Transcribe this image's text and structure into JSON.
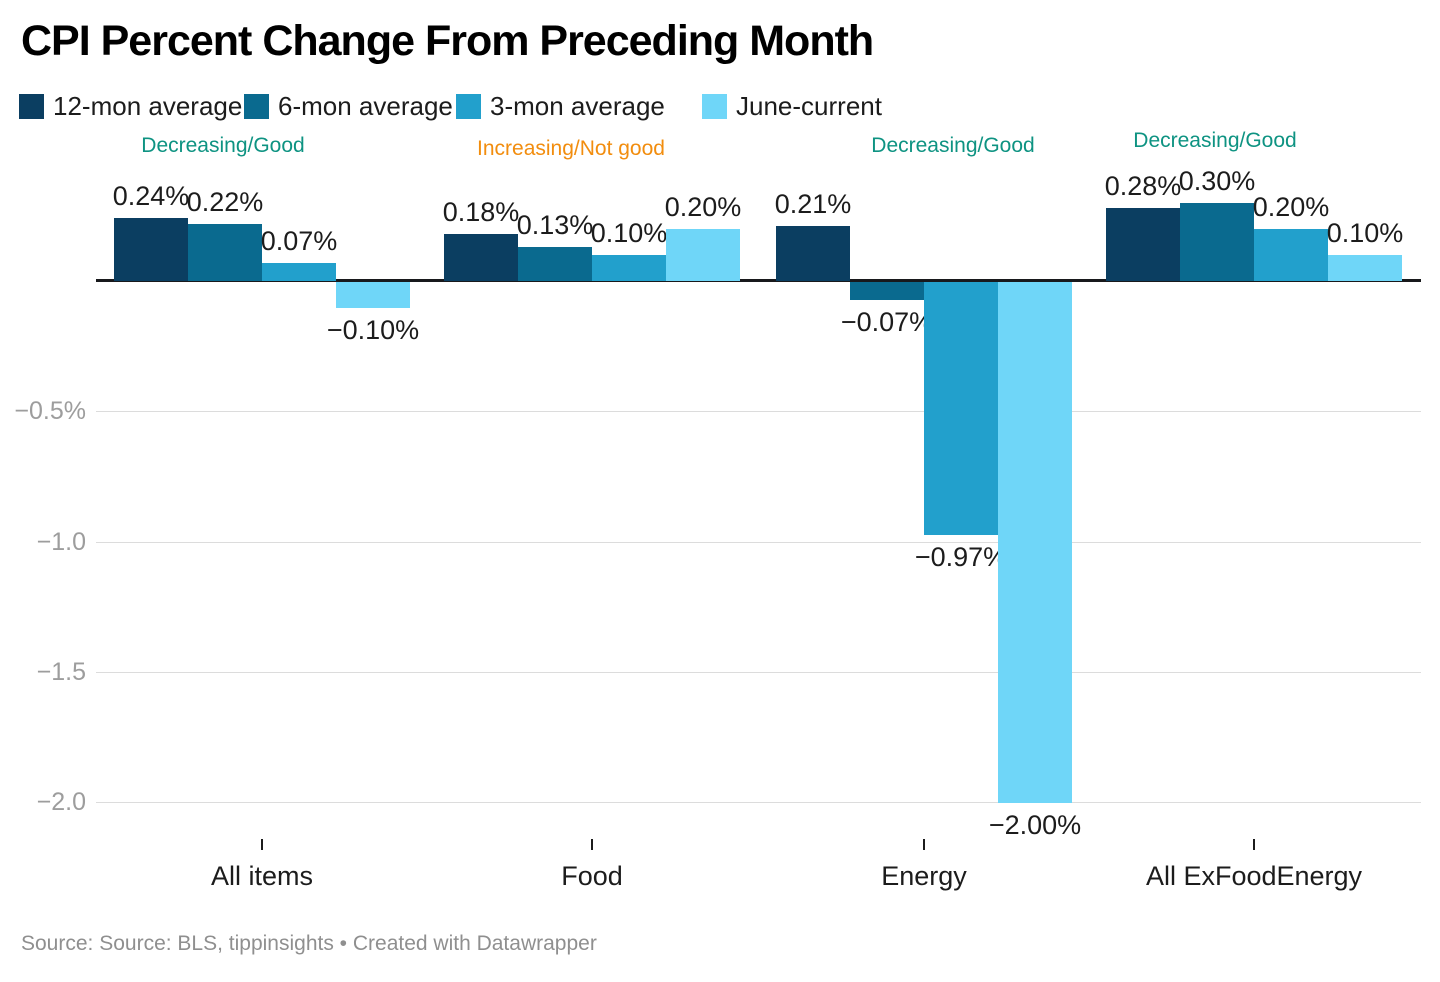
{
  "title": "CPI Percent Change From Preceding Month",
  "legend": {
    "items": [
      {
        "label": "12-mon average",
        "color": "#0b3e61"
      },
      {
        "label": "6-mon average",
        "color": "#0a6a8f"
      },
      {
        "label": "3-mon average",
        "color": "#22a0cc"
      },
      {
        "label": "June-current",
        "color": "#6fd6f8"
      }
    ]
  },
  "chart_data": {
    "type": "bar",
    "title": "CPI Percent Change From Preceding Month",
    "categories": [
      "All items",
      "Food",
      "Energy",
      "All ExFoodEnergy"
    ],
    "series": [
      {
        "name": "12-mon average",
        "color": "#0b3e61",
        "values": [
          0.24,
          0.18,
          0.21,
          0.28
        ],
        "labels": [
          "0.24%",
          "0.18%",
          "0.21%",
          "0.28%"
        ]
      },
      {
        "name": "6-mon average",
        "color": "#0a6a8f",
        "values": [
          0.22,
          0.13,
          -0.07,
          0.3
        ],
        "labels": [
          "0.22%",
          "0.13%",
          "−0.07%",
          "0.30%"
        ]
      },
      {
        "name": "3-mon average",
        "color": "#22a0cc",
        "values": [
          0.07,
          0.1,
          -0.97,
          0.2
        ],
        "labels": [
          "0.07%",
          "0.10%",
          "−0.97%",
          "0.20%"
        ]
      },
      {
        "name": "June-current",
        "color": "#6fd6f8",
        "values": [
          -0.1,
          0.2,
          -2.0,
          0.1
        ],
        "labels": [
          "−0.10%",
          "0.20%",
          "−2.00%",
          "0.10%"
        ]
      }
    ],
    "annotations": [
      {
        "text": "Decreasing/Good",
        "color": "#0e9382"
      },
      {
        "text": "Increasing/Not good",
        "color": "#f28d0e"
      },
      {
        "text": "Decreasing/Good",
        "color": "#0e9382"
      },
      {
        "text": "Decreasing/Good",
        "color": "#0e9382"
      }
    ],
    "y_axis": {
      "ticks": [
        {
          "label": "−0.5%",
          "value": -0.5
        },
        {
          "label": "−1.0",
          "value": -1.0
        },
        {
          "label": "−1.5",
          "value": -1.5
        },
        {
          "label": "−2.0",
          "value": -2.0
        }
      ]
    },
    "ylim": [
      -2.1,
      0.45
    ],
    "xlabel": "",
    "ylabel": "",
    "grid": true,
    "legend_position": "top",
    "baseline": 0
  },
  "source": {
    "text": "Source: Source: BLS, tippinsights • Created with Datawrapper"
  }
}
